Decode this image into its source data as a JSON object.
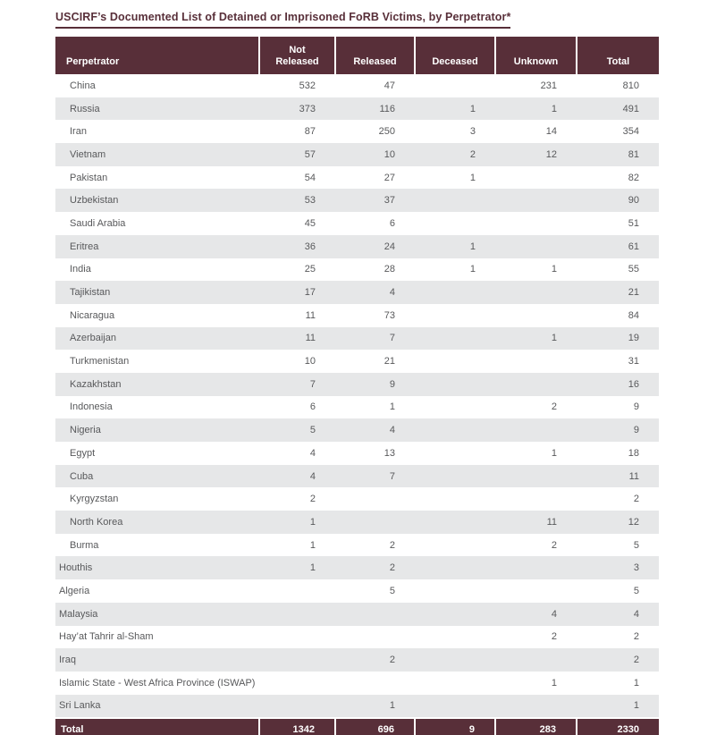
{
  "title": "USCIRF’s Documented List of Detained or Imprisoned FoRB Victims, by Perpetrator*",
  "colors": {
    "maroon": "#582f39",
    "row_alt": "#e6e7e8",
    "body_text": "#58595b",
    "header_text": "#ffffff"
  },
  "table": {
    "columns": {
      "perpetrator": "Perpetrator",
      "not_released": "Not\nReleased",
      "released": "Released",
      "deceased": "Deceased",
      "unknown": "Unknown",
      "total": "Total"
    },
    "rows": [
      {
        "name": "China",
        "indent": true,
        "values": [
          "532",
          "47",
          "",
          "231",
          "810"
        ]
      },
      {
        "name": "Russia",
        "indent": true,
        "values": [
          "373",
          "116",
          "1",
          "1",
          "491"
        ]
      },
      {
        "name": "Iran",
        "indent": true,
        "values": [
          "87",
          "250",
          "3",
          "14",
          "354"
        ]
      },
      {
        "name": "Vietnam",
        "indent": true,
        "values": [
          "57",
          "10",
          "2",
          "12",
          "81"
        ]
      },
      {
        "name": "Pakistan",
        "indent": true,
        "values": [
          "54",
          "27",
          "1",
          "",
          "82"
        ]
      },
      {
        "name": "Uzbekistan",
        "indent": true,
        "values": [
          "53",
          "37",
          "",
          "",
          "90"
        ]
      },
      {
        "name": "Saudi Arabia",
        "indent": true,
        "values": [
          "45",
          "6",
          "",
          "",
          "51"
        ]
      },
      {
        "name": "Eritrea",
        "indent": true,
        "values": [
          "36",
          "24",
          "1",
          "",
          "61"
        ]
      },
      {
        "name": "India",
        "indent": true,
        "values": [
          "25",
          "28",
          "1",
          "1",
          "55"
        ]
      },
      {
        "name": "Tajikistan",
        "indent": true,
        "values": [
          "17",
          "4",
          "",
          "",
          "21"
        ]
      },
      {
        "name": "Nicaragua",
        "indent": true,
        "values": [
          "11",
          "73",
          "",
          "",
          "84"
        ]
      },
      {
        "name": "Azerbaijan",
        "indent": true,
        "values": [
          "11",
          "7",
          "",
          "1",
          "19"
        ]
      },
      {
        "name": "Turkmenistan",
        "indent": true,
        "values": [
          "10",
          "21",
          "",
          "",
          "31"
        ]
      },
      {
        "name": "Kazakhstan",
        "indent": true,
        "values": [
          "7",
          "9",
          "",
          "",
          "16"
        ]
      },
      {
        "name": "Indonesia",
        "indent": true,
        "values": [
          "6",
          "1",
          "",
          "2",
          "9"
        ]
      },
      {
        "name": "Nigeria",
        "indent": true,
        "values": [
          "5",
          "4",
          "",
          "",
          "9"
        ]
      },
      {
        "name": "Egypt",
        "indent": true,
        "values": [
          "4",
          "13",
          "",
          "1",
          "18"
        ]
      },
      {
        "name": "Cuba",
        "indent": true,
        "values": [
          "4",
          "7",
          "",
          "",
          "11"
        ]
      },
      {
        "name": "Kyrgyzstan",
        "indent": true,
        "values": [
          "2",
          "",
          "",
          "",
          "2"
        ]
      },
      {
        "name": "North Korea",
        "indent": true,
        "values": [
          "1",
          "",
          "",
          "11",
          "12"
        ]
      },
      {
        "name": "Burma",
        "indent": true,
        "values": [
          "1",
          "2",
          "",
          "2",
          "5"
        ]
      },
      {
        "name": "Houthis",
        "indent": false,
        "values": [
          "1",
          "2",
          "",
          "",
          "3"
        ]
      },
      {
        "name": "Algeria",
        "indent": false,
        "values": [
          "",
          "5",
          "",
          "",
          "5"
        ]
      },
      {
        "name": "Malaysia",
        "indent": false,
        "values": [
          "",
          "",
          "",
          "4",
          "4"
        ]
      },
      {
        "name": "Hay’at Tahrir al-Sham",
        "indent": false,
        "values": [
          "",
          "",
          "",
          "2",
          "2"
        ]
      },
      {
        "name": "Iraq",
        "indent": false,
        "values": [
          "",
          "2",
          "",
          "",
          "2"
        ]
      },
      {
        "name": "Islamic State - West Africa Province (ISWAP)",
        "indent": false,
        "values": [
          "",
          "",
          "",
          "1",
          "1"
        ]
      },
      {
        "name": "Sri Lanka",
        "indent": false,
        "values": [
          "",
          "1",
          "",
          "",
          "1"
        ]
      }
    ],
    "total_row": {
      "label": "Total",
      "values": [
        "1342",
        "696",
        "9",
        "283",
        "2330"
      ]
    }
  }
}
